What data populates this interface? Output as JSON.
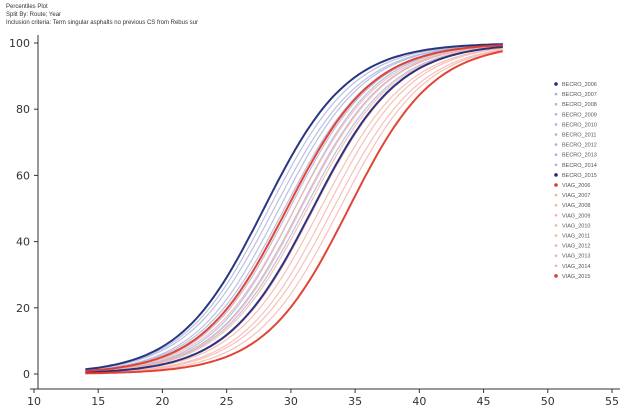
{
  "header": {
    "title": "Percentiles Plot",
    "subtitle": "Split By: Route; Year",
    "criteria": "Inclusion criteria: Term singular asphalts no previous CS from Rebus sur"
  },
  "colors": {
    "blue_dark": "#1f2a7a",
    "blue_light": "#aab0d8",
    "red_dark": "#e03a2a",
    "red_light": "#f4b1a6",
    "axis": "#333333"
  },
  "chart_data": {
    "type": "line",
    "title": "Percentiles Plot",
    "xlabel": "",
    "ylabel": "",
    "xlim": [
      10,
      55
    ],
    "ylim": [
      0,
      100
    ],
    "x_ticks": [
      10,
      15,
      20,
      25,
      30,
      35,
      40,
      45,
      50,
      55
    ],
    "y_ticks": [
      0,
      20,
      40,
      60,
      80,
      100
    ],
    "legend_position": "right",
    "series": [
      {
        "name": "BECRO_2006",
        "group": "BECRO",
        "shade": "dark",
        "dx": -1.6,
        "k": 0.305
      },
      {
        "name": "BECRO_2007",
        "group": "BECRO",
        "shade": "light",
        "dx": -1.2,
        "k": 0.3
      },
      {
        "name": "BECRO_2008",
        "group": "BECRO",
        "shade": "light",
        "dx": -0.8,
        "k": 0.295
      },
      {
        "name": "BECRO_2009",
        "group": "BECRO",
        "shade": "light",
        "dx": -0.4,
        "k": 0.3
      },
      {
        "name": "BECRO_2010",
        "group": "BECRO",
        "shade": "light",
        "dx": 0.0,
        "k": 0.295
      },
      {
        "name": "BECRO_2011",
        "group": "BECRO",
        "shade": "light",
        "dx": 0.4,
        "k": 0.3
      },
      {
        "name": "BECRO_2012",
        "group": "BECRO",
        "shade": "light",
        "dx": 0.8,
        "k": 0.305
      },
      {
        "name": "BECRO_2013",
        "group": "BECRO",
        "shade": "light",
        "dx": 1.2,
        "k": 0.3
      },
      {
        "name": "BECRO_2014",
        "group": "BECRO",
        "shade": "light",
        "dx": 1.6,
        "k": 0.295
      },
      {
        "name": "BECRO_2015",
        "group": "BECRO",
        "shade": "dark",
        "dx": 2.2,
        "k": 0.3
      },
      {
        "name": "VIAG_2006",
        "group": "VIAG",
        "shade": "dark",
        "dx": 0.2,
        "k": 0.3
      },
      {
        "name": "VIAG_2007",
        "group": "VIAG",
        "shade": "light",
        "dx": 0.8,
        "k": 0.295
      },
      {
        "name": "VIAG_2008",
        "group": "VIAG",
        "shade": "light",
        "dx": 1.3,
        "k": 0.3
      },
      {
        "name": "VIAG_2009",
        "group": "VIAG",
        "shade": "light",
        "dx": 1.8,
        "k": 0.295
      },
      {
        "name": "VIAG_2010",
        "group": "VIAG",
        "shade": "light",
        "dx": 2.3,
        "k": 0.3
      },
      {
        "name": "VIAG_2011",
        "group": "VIAG",
        "shade": "light",
        "dx": 2.8,
        "k": 0.295
      },
      {
        "name": "VIAG_2012",
        "group": "VIAG",
        "shade": "light",
        "dx": 3.3,
        "k": 0.3
      },
      {
        "name": "VIAG_2013",
        "group": "VIAG",
        "shade": "light",
        "dx": 3.8,
        "k": 0.295
      },
      {
        "name": "VIAG_2014",
        "group": "VIAG",
        "shade": "light",
        "dx": 4.3,
        "k": 0.3
      },
      {
        "name": "VIAG_2015",
        "group": "VIAG",
        "shade": "dark",
        "dx": 5.0,
        "k": 0.305
      }
    ],
    "center": 29.5,
    "x_start": 14,
    "x_end": 46.5
  }
}
